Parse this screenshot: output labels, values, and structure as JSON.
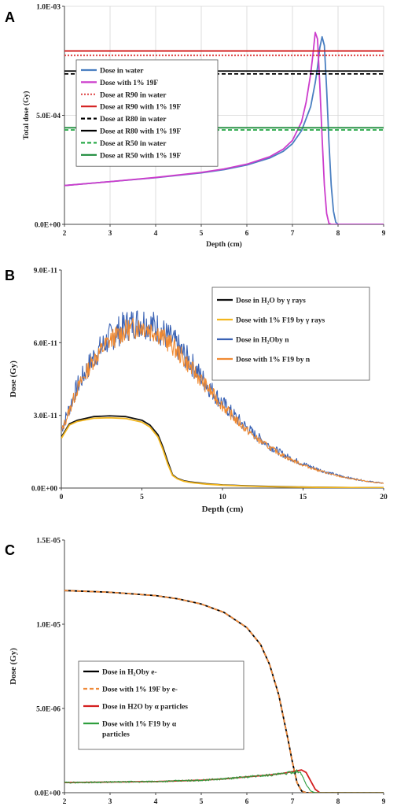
{
  "chart_data": [
    {
      "panel": "A",
      "type": "line",
      "xlabel": "Depth (cm)",
      "ylabel": "Total dose (Gy)",
      "xlim": [
        2,
        9
      ],
      "ylim": [
        0,
        0.001
      ],
      "xticks": [
        "2",
        "3",
        "4",
        "5",
        "6",
        "7",
        "8",
        "9"
      ],
      "yticks": [
        {
          "v": 0,
          "label": "0.0E+00"
        },
        {
          "v": 0.0005,
          "label": "5.0E-04"
        },
        {
          "v": 0.001,
          "label": "1.0E-03"
        }
      ],
      "grid": true,
      "legend_position": "upper-left",
      "series": [
        {
          "name": "Dose in water",
          "color": "#4a7fc1",
          "style": "solid",
          "x": [
            2,
            3,
            4,
            5,
            5.5,
            6,
            6.5,
            6.8,
            7,
            7.2,
            7.4,
            7.5,
            7.55,
            7.6,
            7.65,
            7.7,
            7.75,
            7.8,
            7.85,
            7.9,
            7.95,
            8.0,
            9.0
          ],
          "y": [
            0.000178,
            0.000196,
            0.000214,
            0.000236,
            0.000251,
            0.000272,
            0.000304,
            0.000335,
            0.00037,
            0.00043,
            0.00054,
            0.00065,
            0.00072,
            0.00081,
            0.00086,
            0.00082,
            0.00062,
            0.00038,
            0.00018,
            6e-05,
            1e-05,
            0,
            0
          ]
        },
        {
          "name": "Dose with 1% 19F",
          "color": "#cc3dcc",
          "style": "solid",
          "x": [
            2,
            3,
            4,
            5,
            5.5,
            6,
            6.5,
            6.8,
            7,
            7.2,
            7.3,
            7.4,
            7.45,
            7.5,
            7.55,
            7.6,
            7.65,
            7.7,
            7.75,
            7.8,
            7.85,
            9.0
          ],
          "y": [
            0.000178,
            0.000196,
            0.000215,
            0.000238,
            0.000254,
            0.000276,
            0.00031,
            0.000345,
            0.000385,
            0.00047,
            0.00056,
            0.00069,
            0.00078,
            0.00088,
            0.00085,
            0.00064,
            0.0004,
            0.00018,
            5e-05,
            5e-06,
            0,
            0
          ]
        },
        {
          "name": "Dose at R90 in water",
          "color": "#e05050",
          "style": "dotted",
          "x": [
            2,
            9
          ],
          "y": [
            0.000775,
            0.000775
          ]
        },
        {
          "name": "Dose at R90 with 1% 19F",
          "color": "#d42020",
          "style": "solid",
          "x": [
            2,
            9
          ],
          "y": [
            0.000795,
            0.000795
          ]
        },
        {
          "name": "Dose at R80 in water",
          "color": "#000000",
          "style": "dashed",
          "x": [
            2,
            9
          ],
          "y": [
            0.00069,
            0.00069
          ]
        },
        {
          "name": "Dose at R80 with 1% 19F",
          "color": "#000000",
          "style": "solid",
          "x": [
            2,
            9
          ],
          "y": [
            0.000703,
            0.000703
          ]
        },
        {
          "name": "Dose at R50 in water",
          "color": "#2aaa4a",
          "style": "dashed",
          "x": [
            2,
            9
          ],
          "y": [
            0.000433,
            0.000433
          ]
        },
        {
          "name": "Dose at R50 with 1% 19F",
          "color": "#1e8c3c",
          "style": "solid",
          "x": [
            2,
            9
          ],
          "y": [
            0.000443,
            0.000443
          ]
        }
      ]
    },
    {
      "panel": "B",
      "type": "line",
      "xlabel": "Depth (cm)",
      "ylabel": "Dose  (Gy)",
      "xlim": [
        0,
        20
      ],
      "ylim": [
        0,
        9e-11
      ],
      "xticks": [
        "0",
        "5",
        "10",
        "15",
        "20"
      ],
      "yticks": [
        {
          "v": 0,
          "label": "0.0E+00"
        },
        {
          "v": 3e-11,
          "label": "3.0E-11"
        },
        {
          "v": 6e-11,
          "label": "6.0E-11"
        },
        {
          "v": 9e-11,
          "label": "9.0E-11"
        }
      ],
      "grid": false,
      "legend_position": "right",
      "series": [
        {
          "name": "Dose in H₂O by γ rays",
          "color": "#111111",
          "style": "solid",
          "x": [
            0,
            0.5,
            1,
            2,
            3,
            4,
            5,
            5.5,
            6,
            6.3,
            6.6,
            6.9,
            7.2,
            7.6,
            8,
            9,
            10,
            12,
            14,
            16,
            18,
            20
          ],
          "y": [
            2.1e-11,
            2.65e-11,
            2.8e-11,
            2.95e-11,
            2.98e-11,
            2.95e-11,
            2.8e-11,
            2.6e-11,
            2.2e-11,
            1.7e-11,
            1.1e-11,
            5.5e-12,
            4e-12,
            3e-12,
            2.5e-12,
            1.8e-12,
            1.3e-12,
            8e-13,
            5e-13,
            3e-13,
            2e-13,
            1e-13
          ]
        },
        {
          "name": "Dose with 1% F19 by γ rays",
          "color": "#f2b61e",
          "style": "solid",
          "x": [
            0,
            0.5,
            1,
            2,
            3,
            4,
            5,
            5.5,
            6,
            6.3,
            6.6,
            6.9,
            7.2,
            7.6,
            8,
            9,
            10,
            12,
            14,
            16,
            18,
            20
          ],
          "y": [
            2.05e-11,
            2.6e-11,
            2.75e-11,
            2.88e-11,
            2.9e-11,
            2.87e-11,
            2.72e-11,
            2.52e-11,
            2.1e-11,
            1.6e-11,
            1e-11,
            5.2e-12,
            3.8e-12,
            2.8e-12,
            2.3e-12,
            1.6e-12,
            1.2e-12,
            7e-13,
            4.5e-13,
            2.8e-13,
            1.8e-13,
            1e-13
          ]
        },
        {
          "name": "Dose in  H₂Oby n",
          "color": "#3a62b4",
          "style": "noisy",
          "noise": 0.1,
          "seed": 7,
          "x": [
            0,
            1,
            2,
            3,
            4,
            5,
            6,
            7,
            8,
            9,
            10,
            11,
            12,
            13,
            14,
            15,
            16,
            17,
            18,
            19,
            20
          ],
          "y": [
            2.4e-11,
            4.2e-11,
            5.4e-11,
            6.2e-11,
            6.7e-11,
            6.9e-11,
            6.6e-11,
            6e-11,
            5.2e-11,
            4.3e-11,
            3.5e-11,
            2.8e-11,
            2.2e-11,
            1.7e-11,
            1.3e-11,
            1e-11,
            7.5e-12,
            5.5e-12,
            4e-12,
            2.8e-12,
            2e-12
          ]
        },
        {
          "name": "Dose with 1% F19 by n",
          "color": "#f08a32",
          "style": "noisy",
          "noise": 0.07,
          "seed": 13,
          "x": [
            0,
            1,
            2,
            3,
            4,
            5,
            6,
            7,
            8,
            9,
            10,
            11,
            12,
            13,
            14,
            15,
            16,
            17,
            18,
            19,
            20
          ],
          "y": [
            2.3e-11,
            4.1e-11,
            5.3e-11,
            6.1e-11,
            6.5e-11,
            6.7e-11,
            6.4e-11,
            5.8e-11,
            5e-11,
            4.2e-11,
            3.4e-11,
            2.7e-11,
            2.1e-11,
            1.65e-11,
            1.25e-11,
            9.5e-12,
            7.2e-12,
            5.2e-12,
            3.8e-12,
            2.7e-12,
            1.9e-12
          ]
        }
      ]
    },
    {
      "panel": "C",
      "type": "line",
      "xlabel": "Depth (cm)",
      "ylabel": "Dose (Gy)",
      "xlim": [
        2,
        9
      ],
      "ylim": [
        0,
        1.5e-05
      ],
      "xticks": [
        "2",
        "3",
        "4",
        "5",
        "6",
        "7",
        "8",
        "9"
      ],
      "yticks": [
        {
          "v": 0,
          "label": "0.0E+00"
        },
        {
          "v": 5e-06,
          "label": "5.0E-06"
        },
        {
          "v": 1e-05,
          "label": "1.0E-05"
        },
        {
          "v": 1.5e-05,
          "label": "1.5E-05"
        }
      ],
      "grid": false,
      "legend_position": "lower-left",
      "series": [
        {
          "name": "Dose in H₂Oby e-",
          "color": "#000000",
          "style": "solid",
          "x": [
            2,
            3,
            4,
            4.5,
            5,
            5.5,
            6,
            6.3,
            6.5,
            6.7,
            6.9,
            7.0,
            7.1,
            7.2,
            7.3,
            9
          ],
          "y": [
            1.2e-05,
            1.19e-05,
            1.17e-05,
            1.15e-05,
            1.12e-05,
            1.07e-05,
            9.8e-06,
            8.8e-06,
            7.6e-06,
            5.8e-06,
            3.2e-06,
            1.8e-06,
            6e-07,
            1e-07,
            0,
            0
          ]
        },
        {
          "name": "Dose with 1% 19F by e-",
          "color": "#ef8a3a",
          "style": "dashed",
          "x": [
            2,
            3,
            4,
            4.5,
            5,
            5.5,
            6,
            6.3,
            6.5,
            6.7,
            6.9,
            7.0,
            7.1,
            7.2,
            7.3,
            9
          ],
          "y": [
            1.2e-05,
            1.19e-05,
            1.17e-05,
            1.15e-05,
            1.12e-05,
            1.07e-05,
            9.8e-06,
            8.8e-06,
            7.6e-06,
            5.8e-06,
            3.2e-06,
            1.8e-06,
            6e-07,
            1e-07,
            0,
            0
          ]
        },
        {
          "name": "Dose in H2O by α particles",
          "color": "#d42020",
          "style": "solid",
          "x": [
            2,
            3,
            4,
            5,
            5.5,
            6,
            6.5,
            6.8,
            7.0,
            7.1,
            7.2,
            7.3,
            7.4,
            7.5,
            7.6,
            9
          ],
          "y": [
            6e-07,
            6.3e-07,
            6.6e-07,
            7.4e-07,
            8.2e-07,
            9.4e-07,
            1.05e-06,
            1.15e-06,
            1.25e-06,
            1.3e-06,
            1.35e-06,
            1.2e-06,
            7e-07,
            2e-07,
            0,
            0
          ]
        },
        {
          "name": "Dose with 1% F19 by α particles",
          "color": "#2e9e3e",
          "style": "noisy",
          "noise": 0.07,
          "seed": 29,
          "x": [
            2,
            3,
            4,
            5,
            5.5,
            6,
            6.5,
            6.8,
            7.0,
            7.1,
            7.2,
            7.3,
            7.4,
            7.5,
            9
          ],
          "y": [
            6e-07,
            6.3e-07,
            6.6e-07,
            7.4e-07,
            8.2e-07,
            9.4e-07,
            1.05e-06,
            1.12e-06,
            1.22e-06,
            1.28e-06,
            1.1e-06,
            5e-07,
            1e-07,
            0,
            0
          ]
        }
      ]
    }
  ]
}
